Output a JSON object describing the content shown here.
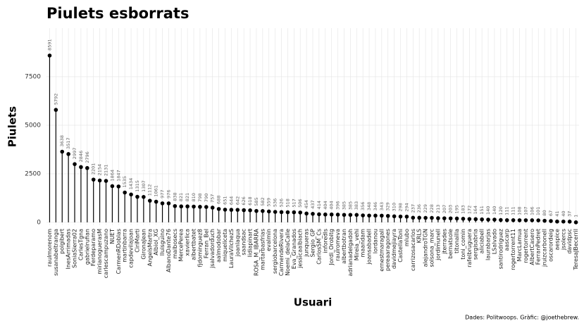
{
  "chart_data": {
    "type": "lollipop",
    "title": "Piulets esborrats",
    "x_label": "Usuari",
    "y_label": "Piulets",
    "caption": "Dades: Politwoops. Gràfic: @joethebrew.",
    "categories": [
      "raulmorenom",
      "susanabeltranga",
      "polgibert",
      "InesArrimadas",
      "SoniaSierra02",
      "CarlesTgna",
      "gabrielrufian",
      "Ferdeparamo",
      "mirianoguerasM",
      "carlescampuzano",
      "NUET",
      "CarmenRDoblas",
      "martinbarra",
      "capdevilajoan",
      "CiriMarti",
      "GironaJean",
      "AngelsMartra",
      "Albiol_XG",
      "lluisguino",
      "AlbanoDante76",
      "malbosecs",
      "MercePerea",
      "xavierlica",
      "albertbatet",
      "fjdominguez8",
      "Ferran_Bel",
      "jsalvadorduch",
      "aalmodobar",
      "miqueliceta",
      "LauraVilchezS",
      "joanlaqua",
      "saandsac",
      "lidiapinart",
      "ROSA_M_IBARRA",
      "martarbasfrias",
      "evalmin",
      "sergiobarcelona",
      "CarmendeRivera",
      "Noemi_delaCalle",
      "Eva_Granados",
      "jessicaalbiach",
      "junqueras",
      "Sergio_GP",
      "CarlosSM_Cs",
      "inforedls",
      "Jordi_Orobitg",
      "raulromeva",
      "albertbotran",
      "adrianadelgadoh",
      "Mireia_vehi",
      "maandam",
      "joansabadell",
      "lordanou",
      "ernestmaragall",
      "pereaaragones",
      "davidmejiayra",
      "CastellaToni",
      "mlubo",
      "carrizosacarlos",
      "KRLS",
      "alejandroTGN",
      "solsona_marc",
      "jordimunell",
      "jterrades",
      "bernatsole",
      "titonailla",
      "toni_comin",
      "rafelbruguera",
      "sergisabria",
      "aliciabell",
      "laurabarjas",
      "LSalvado",
      "santirodriguez",
      "aascarp",
      "rogertorrent11",
      "MarcLamua",
      "rogertorrent",
      "AlbertCasero",
      "FerranPedret",
      "jruizcarbonell",
      "oscarordeig",
      "aespice",
      "jsolercs",
      "davidpsc",
      "TeresaJBecerril"
    ],
    "values": [
      8591,
      5792,
      3638,
      3517,
      2997,
      2846,
      2796,
      2201,
      2154,
      2131,
      1864,
      1847,
      1535,
      1434,
      1315,
      1307,
      1112,
      1061,
      977,
      976,
      838,
      821,
      821,
      810,
      798,
      790,
      757,
      688,
      651,
      644,
      642,
      626,
      618,
      585,
      582,
      559,
      536,
      526,
      518,
      517,
      506,
      454,
      437,
      414,
      404,
      404,
      396,
      385,
      385,
      383,
      356,
      348,
      346,
      343,
      329,
      310,
      298,
      294,
      237,
      236,
      229,
      228,
      213,
      207,
      203,
      195,
      183,
      172,
      164,
      151,
      140,
      140,
      120,
      111,
      111,
      108,
      107,
      106,
      101,
      80,
      67,
      41,
      40,
      37,
      1
    ],
    "color": "#000000",
    "ylim": [
      -150,
      10000
    ],
    "yticks": [
      0,
      2500,
      5000,
      7500
    ],
    "grid": true
  }
}
